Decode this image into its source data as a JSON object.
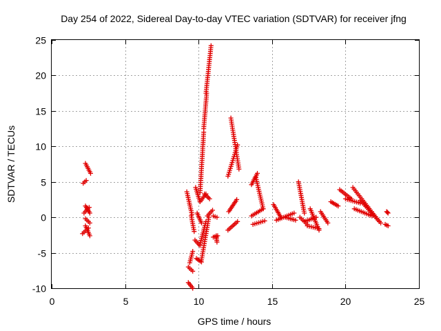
{
  "chart_data": {
    "type": "scatter",
    "title": "Day 254 of 2022, Sidereal Day-to-day VTEC variation (SDTVAR) for receiver jfng",
    "xlabel": "GPS time / hours",
    "ylabel": "SDTVAR / TECUs",
    "xlim": [
      0,
      25
    ],
    "ylim": [
      -10,
      25
    ],
    "xticks": [
      "0",
      "5",
      "10",
      "15",
      "20",
      "25"
    ],
    "yticks": [
      "-10",
      "-5",
      "0",
      "5",
      "10",
      "15",
      "20",
      "25"
    ],
    "grid": true,
    "marker": "+",
    "color": "#e00000",
    "segments": [
      {
        "x0": 2.15,
        "x1": 2.35,
        "y0": 4.8,
        "y1": 5.2
      },
      {
        "x0": 2.3,
        "x1": 2.65,
        "y0": 7.6,
        "y1": 6.2
      },
      {
        "x0": 2.2,
        "x1": 2.55,
        "y0": 0.6,
        "y1": 1.4
      },
      {
        "x0": 2.3,
        "x1": 2.6,
        "y0": 1.6,
        "y1": 0.6
      },
      {
        "x0": 2.3,
        "x1": 2.6,
        "y0": -0.2,
        "y1": -0.8
      },
      {
        "x0": 2.1,
        "x1": 2.5,
        "y0": -2.3,
        "y1": -1.5
      },
      {
        "x0": 2.3,
        "x1": 2.6,
        "y0": -1.2,
        "y1": -2.6
      },
      {
        "x0": 9.2,
        "x1": 9.55,
        "y0": 3.6,
        "y1": 0.4
      },
      {
        "x0": 9.5,
        "x1": 9.7,
        "y0": 0.2,
        "y1": -2.0
      },
      {
        "x0": 9.6,
        "x1": 9.4,
        "y0": -4.8,
        "y1": -6.4
      },
      {
        "x0": 9.3,
        "x1": 9.6,
        "y0": -7.0,
        "y1": -7.6
      },
      {
        "x0": 9.3,
        "x1": 9.6,
        "y0": -9.2,
        "y1": -10.0
      },
      {
        "x0": 9.8,
        "x1": 10.1,
        "y0": 4.2,
        "y1": 2.2
      },
      {
        "x0": 10.1,
        "x1": 10.5,
        "y0": 2.2,
        "y1": 3.3
      },
      {
        "x0": 10.4,
        "x1": 10.75,
        "y0": 3.3,
        "y1": 2.6
      },
      {
        "x0": 9.9,
        "x1": 10.2,
        "y0": 0.6,
        "y1": -0.8
      },
      {
        "x0": 9.75,
        "x1": 10.1,
        "y0": -3.2,
        "y1": -4.0
      },
      {
        "x0": 10.1,
        "x1": 10.5,
        "y0": -3.8,
        "y1": -0.6
      },
      {
        "x0": 9.85,
        "x1": 10.2,
        "y0": -5.8,
        "y1": -6.3
      },
      {
        "x0": 10.2,
        "x1": 10.7,
        "y0": -6.0,
        "y1": 0.0
      },
      {
        "x0": 10.6,
        "x1": 10.95,
        "y0": 0.2,
        "y1": 1.0
      },
      {
        "x0": 10.1,
        "x1": 10.35,
        "y0": 3.5,
        "y1": 12.0
      },
      {
        "x0": 10.35,
        "x1": 10.55,
        "y0": 12.5,
        "y1": 17.5
      },
      {
        "x0": 10.5,
        "x1": 10.85,
        "y0": 17.5,
        "y1": 24.2
      },
      {
        "x0": 11.0,
        "x1": 11.25,
        "y0": 0.2,
        "y1": 0.0
      },
      {
        "x0": 11.2,
        "x1": 11.25,
        "y0": -2.6,
        "y1": -3.5
      },
      {
        "x0": 11.0,
        "x1": 11.3,
        "y0": -2.8,
        "y1": -2.6
      },
      {
        "x0": 12.0,
        "x1": 12.65,
        "y0": 5.8,
        "y1": 10.2
      },
      {
        "x0": 12.2,
        "x1": 12.75,
        "y0": 14.0,
        "y1": 6.8
      },
      {
        "x0": 12.05,
        "x1": 12.6,
        "y0": 0.8,
        "y1": 2.5
      },
      {
        "x0": 12.0,
        "x1": 12.65,
        "y0": -1.8,
        "y1": -0.6
      },
      {
        "x0": 13.6,
        "x1": 14.0,
        "y0": 4.6,
        "y1": 6.2
      },
      {
        "x0": 13.9,
        "x1": 14.4,
        "y0": 5.6,
        "y1": 1.2
      },
      {
        "x0": 13.6,
        "x1": 14.4,
        "y0": 0.2,
        "y1": 1.2
      },
      {
        "x0": 13.7,
        "x1": 14.5,
        "y0": -1.0,
        "y1": -0.5
      },
      {
        "x0": 15.1,
        "x1": 15.6,
        "y0": 1.8,
        "y1": 0.0
      },
      {
        "x0": 15.3,
        "x1": 16.5,
        "y0": -0.4,
        "y1": 0.6
      },
      {
        "x0": 15.9,
        "x1": 16.6,
        "y0": 0.0,
        "y1": -0.4
      },
      {
        "x0": 16.8,
        "x1": 17.2,
        "y0": 5.0,
        "y1": 0.6
      },
      {
        "x0": 16.9,
        "x1": 17.4,
        "y0": 0.0,
        "y1": -1.0
      },
      {
        "x0": 17.2,
        "x1": 18.0,
        "y0": -0.6,
        "y1": 0.0
      },
      {
        "x0": 17.6,
        "x1": 18.2,
        "y0": 1.2,
        "y1": -1.8
      },
      {
        "x0": 17.4,
        "x1": 18.2,
        "y0": -1.2,
        "y1": -1.6
      },
      {
        "x0": 18.3,
        "x1": 18.8,
        "y0": 0.8,
        "y1": -0.8
      },
      {
        "x0": 19.0,
        "x1": 19.5,
        "y0": 2.2,
        "y1": 1.6
      },
      {
        "x0": 19.6,
        "x1": 20.4,
        "y0": 3.9,
        "y1": 2.6
      },
      {
        "x0": 20.0,
        "x1": 21.0,
        "y0": 2.6,
        "y1": 2.0
      },
      {
        "x0": 20.5,
        "x1": 22.3,
        "y0": 4.2,
        "y1": -0.6
      },
      {
        "x0": 20.6,
        "x1": 21.8,
        "y0": 1.2,
        "y1": 0.2
      },
      {
        "x0": 21.0,
        "x1": 22.4,
        "y0": 2.4,
        "y1": -0.8
      },
      {
        "x0": 22.8,
        "x1": 22.9,
        "y0": 0.8,
        "y1": 0.6
      },
      {
        "x0": 22.7,
        "x1": 22.9,
        "y0": -1.0,
        "y1": -1.2
      }
    ]
  }
}
